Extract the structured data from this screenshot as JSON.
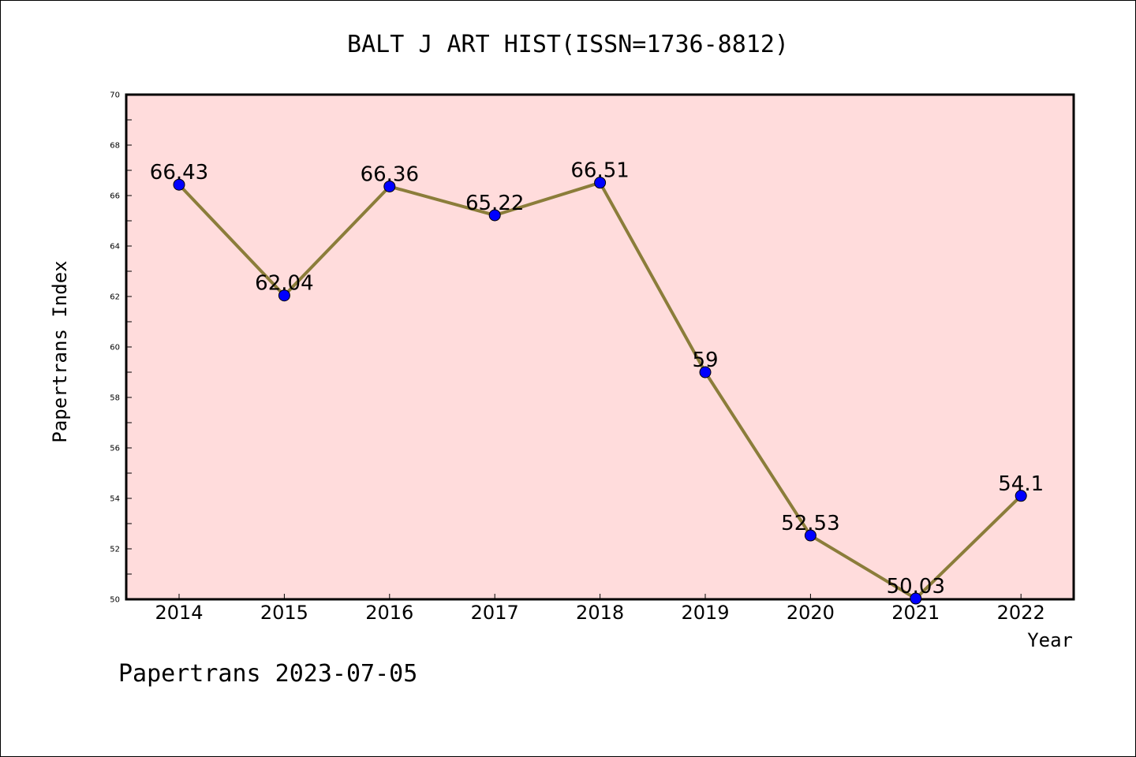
{
  "chart_data": {
    "type": "line",
    "title": "BALT J ART HIST(ISSN=1736-8812)",
    "xlabel": "Year",
    "ylabel": "Papertrans Index",
    "footer": "Papertrans 2023-07-05",
    "categories": [
      "2014",
      "2015",
      "2016",
      "2017",
      "2018",
      "2019",
      "2020",
      "2021",
      "2022"
    ],
    "values": [
      66.43,
      62.04,
      66.36,
      65.22,
      66.51,
      59,
      52.53,
      50.03,
      54.1
    ],
    "value_labels": [
      "66.43",
      "62.04",
      "66.36",
      "65.22",
      "66.51",
      "59",
      "52.53",
      "50.03",
      "54.1"
    ],
    "ylim": [
      50,
      70
    ],
    "yticks": [
      50,
      52,
      54,
      56,
      58,
      60,
      62,
      64,
      66,
      68,
      70
    ],
    "ytick_labels": [
      "50",
      "52",
      "54",
      "56",
      "58",
      "60",
      "62",
      "64",
      "66",
      "68",
      "70"
    ],
    "grid": false,
    "colors": {
      "plot_background": "#ffdcdc",
      "line": "#8b7d3a",
      "marker": "#0000ff"
    }
  }
}
